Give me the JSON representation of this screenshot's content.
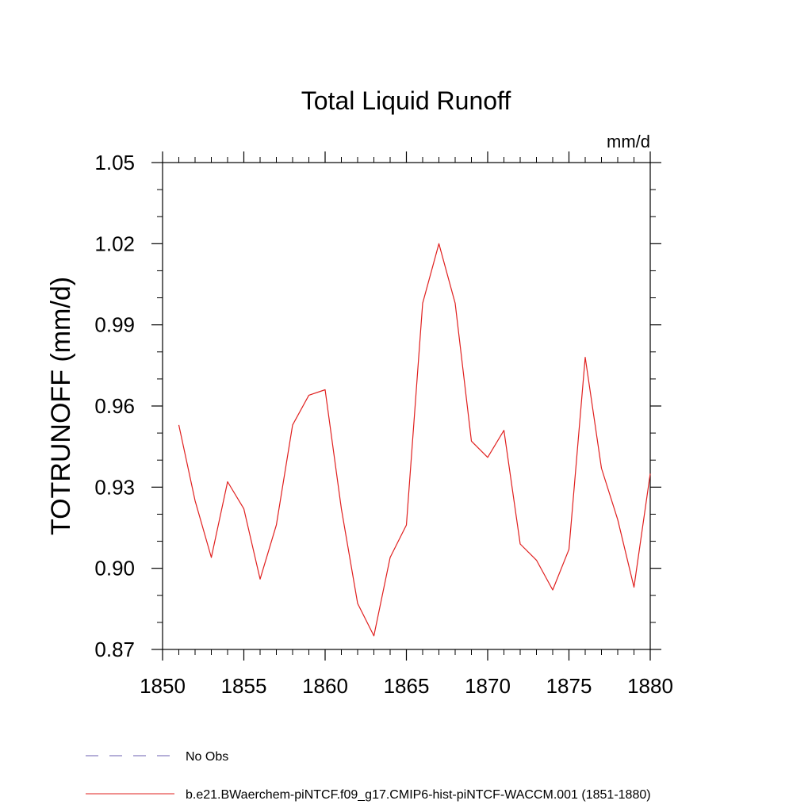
{
  "chart_data": {
    "type": "line",
    "title": "Total Liquid Runoff",
    "units_label": "mm/d",
    "ylabel": "TOTRUNOFF  (mm/d)",
    "xlabel": "",
    "xlim": [
      1850,
      1880
    ],
    "ylim": [
      0.87,
      1.05
    ],
    "x_ticks": [
      1850,
      1855,
      1860,
      1865,
      1870,
      1875,
      1880
    ],
    "y_ticks": [
      0.87,
      0.9,
      0.93,
      0.96,
      0.99,
      1.02,
      1.05
    ],
    "x_tick_labels": [
      "1850",
      "1855",
      "1860",
      "1865",
      "1870",
      "1875",
      "1880"
    ],
    "y_tick_labels": [
      "0.87",
      "0.90",
      "0.93",
      "0.96",
      "0.99",
      "1.02",
      "1.05"
    ],
    "series": [
      {
        "name": "b.e21.BWaerchem-piNTCF.f09_g17.CMIP6-hist-piNTCF-WACCM.001 (1851-1880)",
        "color": "#e0201f",
        "style": "solid",
        "x": [
          1851,
          1852,
          1853,
          1854,
          1855,
          1856,
          1857,
          1858,
          1859,
          1860,
          1861,
          1862,
          1863,
          1864,
          1865,
          1866,
          1867,
          1868,
          1869,
          1870,
          1871,
          1872,
          1873,
          1874,
          1875,
          1876,
          1877,
          1878,
          1879,
          1880
        ],
        "y": [
          0.953,
          0.925,
          0.904,
          0.932,
          0.922,
          0.896,
          0.916,
          0.953,
          0.964,
          0.966,
          0.922,
          0.887,
          0.875,
          0.904,
          0.916,
          0.998,
          1.02,
          0.998,
          0.947,
          0.941,
          0.951,
          0.909,
          0.903,
          0.892,
          0.907,
          0.978,
          0.937,
          0.918,
          0.893,
          0.935
        ]
      }
    ],
    "legend": {
      "placement": "bottom-left",
      "entries": [
        {
          "label": "No Obs",
          "color": "#6b5fb0",
          "style": "dashed"
        },
        {
          "label": "b.e21.BWaerchem-piNTCF.f09_g17.CMIP6-hist-piNTCF-WACCM.001 (1851-1880)",
          "color": "#e0201f",
          "style": "solid"
        }
      ]
    }
  }
}
